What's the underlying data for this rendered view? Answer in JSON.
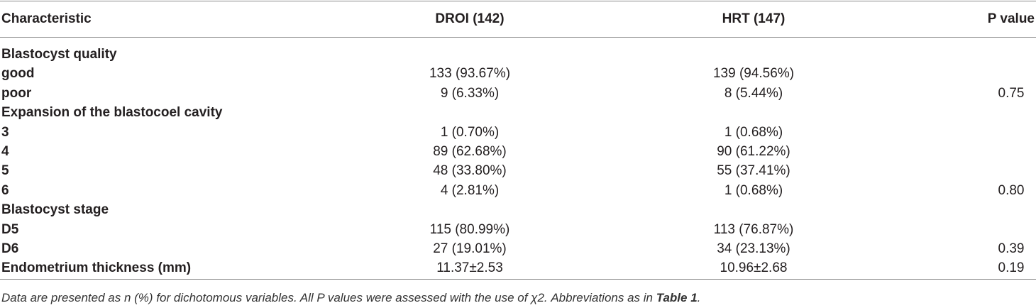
{
  "table": {
    "header": [
      "Characteristic",
      "DROI (142)",
      "HRT (147)",
      "P value"
    ],
    "rows": [
      [
        "Blastocyst quality"
      ],
      [
        "good",
        "133 (93.67%)",
        "139 (94.56%)"
      ],
      [
        "poor",
        "9 (6.33%)",
        "8 (5.44%)",
        "0.75"
      ],
      [
        "Expansion of the blastocoel cavity"
      ],
      [
        "3",
        "1 (0.70%)",
        "1 (0.68%)"
      ],
      [
        "4",
        "89 (62.68%)",
        "90 (61.22%)"
      ],
      [
        "5",
        "48 (33.80%)",
        "55 (37.41%)"
      ],
      [
        "6",
        "4 (2.81%)",
        "1 (0.68%)",
        "0.80"
      ],
      [
        "Blastocyst stage"
      ],
      [
        "D5",
        "115 (80.99%)",
        "113 (76.87%)"
      ],
      [
        "D6",
        "27 (19.01%)",
        "34 (23.13%)",
        "0.39"
      ],
      [
        "Endometrium thickness (mm)",
        "11.37±2.53",
        "10.96±2.68",
        "0.19"
      ]
    ]
  },
  "footnote": [
    "Data are presented as n (%) for dichotomous variables. All P values were assessed with the use of χ2. Abbreviations as in ",
    "Table 1",
    "."
  ]
}
